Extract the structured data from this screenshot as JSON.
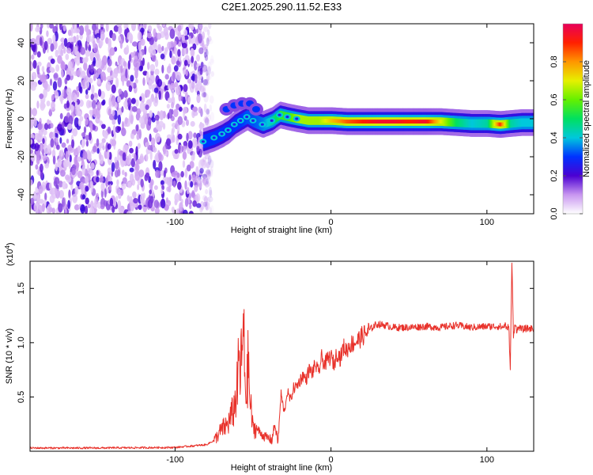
{
  "title": "C2E1.2025.290.11.52.E33",
  "chart_data": [
    {
      "type": "heatmap",
      "name": "spectrogram",
      "xlabel": "Height of straight line (km)",
      "ylabel": "Frequency (Hz)",
      "xlim": [
        -193,
        130
      ],
      "ylim": [
        -50,
        50
      ],
      "xticks": [
        -100,
        0,
        100
      ],
      "xtick_labels": [
        "-100",
        "0",
        "100"
      ],
      "yticks": [
        -40,
        -20,
        0,
        20,
        40
      ],
      "ytick_labels": [
        "-40",
        "-20",
        "0",
        "20",
        "40"
      ],
      "noise_region_x": [
        -193,
        -80
      ],
      "ridge": [
        {
          "x": -82,
          "y": -12,
          "amp": 0.3
        },
        {
          "x": -75,
          "y": -10,
          "amp": 0.3
        },
        {
          "x": -70,
          "y": -8,
          "amp": 0.3
        },
        {
          "x": -66,
          "y": -6,
          "amp": 0.28
        },
        {
          "x": -62,
          "y": -3,
          "amp": 0.3
        },
        {
          "x": -58,
          "y": -1,
          "amp": 0.3
        },
        {
          "x": -54,
          "y": 1,
          "amp": 0.32
        },
        {
          "x": -50,
          "y": -1,
          "amp": 0.32
        },
        {
          "x": -44,
          "y": -3,
          "amp": 0.35
        },
        {
          "x": -38,
          "y": -1,
          "amp": 0.45
        },
        {
          "x": -33,
          "y": 2,
          "amp": 0.55
        },
        {
          "x": -28,
          "y": 1,
          "amp": 0.55
        },
        {
          "x": -22,
          "y": 0,
          "amp": 0.65
        },
        {
          "x": -15,
          "y": -1,
          "amp": 0.65
        },
        {
          "x": -8,
          "y": -1,
          "amp": 0.65
        },
        {
          "x": 0,
          "y": -1,
          "amp": 0.75
        },
        {
          "x": 10,
          "y": -1.5,
          "amp": 0.85
        },
        {
          "x": 20,
          "y": -1.5,
          "amp": 0.9
        },
        {
          "x": 30,
          "y": -1.5,
          "amp": 0.95
        },
        {
          "x": 40,
          "y": -1.5,
          "amp": 0.95
        },
        {
          "x": 50,
          "y": -1.5,
          "amp": 0.9
        },
        {
          "x": 60,
          "y": -1.5,
          "amp": 0.95
        },
        {
          "x": 70,
          "y": -1.5,
          "amp": 0.7
        },
        {
          "x": 80,
          "y": -2,
          "amp": 0.5
        },
        {
          "x": 90,
          "y": -2.5,
          "amp": 0.4
        },
        {
          "x": 100,
          "y": -2.5,
          "amp": 0.45
        },
        {
          "x": 108,
          "y": -3,
          "amp": 0.9
        },
        {
          "x": 115,
          "y": -2.5,
          "amp": 0.45
        },
        {
          "x": 122,
          "y": -2,
          "amp": 0.4
        },
        {
          "x": 130,
          "y": -2,
          "amp": 0.4
        }
      ],
      "branch_upper": [
        {
          "x": -67,
          "y": 5
        },
        {
          "x": -62,
          "y": 7
        },
        {
          "x": -57,
          "y": 8
        },
        {
          "x": -52,
          "y": 8
        },
        {
          "x": -48,
          "y": 5
        }
      ],
      "colorbar": {
        "label": "Normalized spectral amplitude",
        "range": [
          0,
          1
        ],
        "ticks": [
          0.0,
          0.2,
          0.4,
          0.6,
          0.8
        ],
        "tick_labels": [
          "0.0",
          "0.2",
          "0.4",
          "0.6",
          "0.8"
        ]
      }
    },
    {
      "type": "line",
      "name": "snr",
      "xlabel": "Height of straight line (km)",
      "ylabel": "SNR (10 * v/v)",
      "scale_label": "(x10",
      "scale_exponent": "4",
      "scale_close": ")",
      "xlim": [
        -193,
        130
      ],
      "ylim": [
        0,
        17500
      ],
      "xticks": [
        -100,
        0,
        100
      ],
      "xtick_labels": [
        "-100",
        "0",
        "100"
      ],
      "yticks": [
        5000,
        10000,
        15000
      ],
      "ytick_labels": [
        "0.5",
        "1.0",
        "1.5"
      ],
      "color": "#e8312a",
      "series": [
        {
          "name": "SNR",
          "x": [
            -193,
            -150,
            -100,
            -80,
            -75,
            -70,
            -66,
            -62,
            -60,
            -59,
            -58,
            -57,
            -56,
            -55,
            -54,
            -53,
            -52,
            -51,
            -50,
            -48,
            -46,
            -44,
            -42,
            -40,
            -38,
            -36,
            -34,
            -32,
            -30,
            -28,
            -26,
            -24,
            -22,
            -20,
            -18,
            -16,
            -14,
            -12,
            -10,
            -8,
            -6,
            -4,
            -2,
            0,
            2,
            4,
            6,
            8,
            10,
            12,
            15,
            18,
            20,
            22,
            25,
            28,
            30,
            35,
            40,
            50,
            60,
            70,
            80,
            90,
            100,
            108,
            110,
            112,
            113,
            114,
            115,
            116,
            117,
            118,
            119,
            120,
            121,
            122,
            125,
            130
          ],
          "y": [
            300,
            300,
            350,
            600,
            1000,
            2000,
            2500,
            4000,
            6000,
            8500,
            7000,
            9500,
            10500,
            6000,
            5500,
            8500,
            4500,
            3500,
            2000,
            2200,
            1800,
            1500,
            1300,
            1200,
            1000,
            2500,
            800,
            5300,
            3500,
            5500,
            4700,
            5800,
            6000,
            6500,
            7000,
            6600,
            7500,
            7200,
            8000,
            7200,
            8600,
            8000,
            8500,
            8700,
            8000,
            9200,
            8500,
            9600,
            9300,
            9800,
            10000,
            10300,
            10600,
            10800,
            11200,
            11600,
            11700,
            11600,
            11400,
            11400,
            11500,
            11400,
            11600,
            11400,
            11500,
            11500,
            11400,
            11700,
            11000,
            11800,
            7500,
            17500,
            10500,
            11900,
            11200,
            11200,
            11500,
            11200,
            11300,
            11300
          ]
        }
      ]
    }
  ]
}
